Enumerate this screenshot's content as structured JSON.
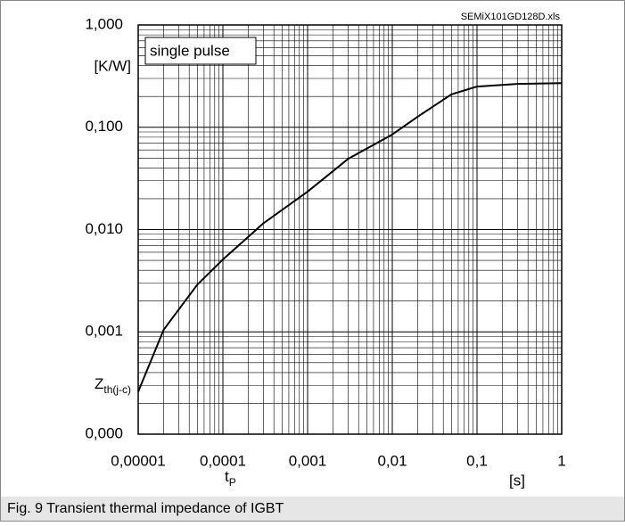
{
  "chart_data": {
    "type": "line",
    "source": "SEMiX101GD128D.xls",
    "annotation": "single pulse",
    "y_unit": "[K/W]",
    "y_label": "Z",
    "y_label_sub": "th(j-c)",
    "x_label": "t",
    "x_label_sub": "P",
    "x_unit": "[s]",
    "caption": "Fig. 9 Transient thermal impedance of IGBT",
    "x_log": true,
    "y_log": true,
    "grid": true,
    "xlim": [
      1e-05,
      1
    ],
    "ylim": [
      0.0001,
      1
    ],
    "xticks": [
      {
        "value": 1e-05,
        "label": "0,00001"
      },
      {
        "value": 0.0001,
        "label": "0,0001"
      },
      {
        "value": 0.001,
        "label": "0,001"
      },
      {
        "value": 0.01,
        "label": "0,01"
      },
      {
        "value": 0.1,
        "label": "0,1"
      },
      1
    ],
    "yticks": [
      {
        "value": 0.0001,
        "label": "0,000"
      },
      {
        "value": 0.001,
        "label": "0,001"
      },
      {
        "value": 0.01,
        "label": "0,010"
      },
      {
        "value": 0.1,
        "label": "0,100"
      },
      {
        "value": 1,
        "label": "1,000"
      }
    ],
    "x": [
      1e-05,
      2e-05,
      5e-05,
      0.0001,
      0.0003,
      0.001,
      0.003,
      0.01,
      0.02,
      0.05,
      0.1,
      0.3,
      1
    ],
    "series": [
      {
        "color": "#000000",
        "values": [
          0.00026,
          0.00105,
          0.0029,
          0.0051,
          0.0115,
          0.0235,
          0.049,
          0.085,
          0.127,
          0.21,
          0.25,
          0.265,
          0.27
        ]
      }
    ]
  }
}
